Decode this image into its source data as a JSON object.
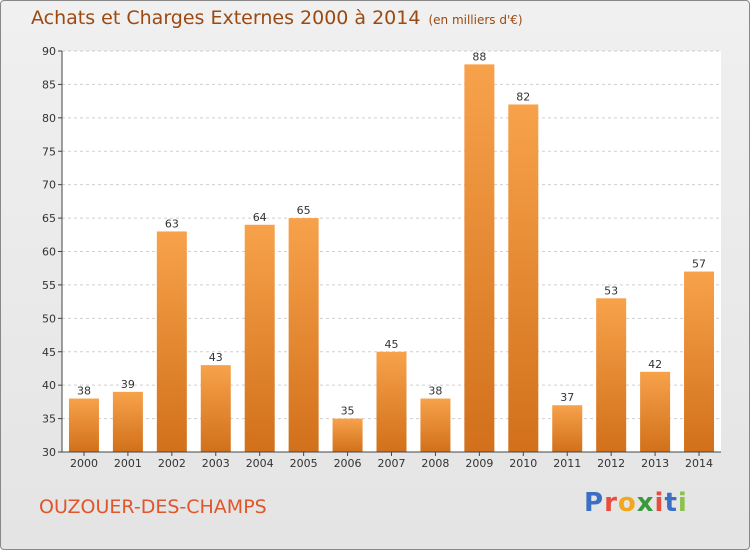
{
  "title": "Achats et Charges Externes 2000 à 2014",
  "unit": "(en milliers d'€)",
  "commune": "OUZOUER-DES-CHAMPS",
  "logo": {
    "text": "Proxiti",
    "colors": [
      "#3a6fc4",
      "#e84c3d",
      "#f2a81d",
      "#3a9a3a",
      "#e84c3d",
      "#3a6fc4",
      "#8bc34a"
    ]
  },
  "colors": {
    "bar_light": "#f7a24b",
    "bar_dark": "#d2701b",
    "grid": "#cfcfcf",
    "axis": "#444444"
  },
  "chart_data": {
    "type": "bar",
    "categories": [
      "2000",
      "2001",
      "2002",
      "2003",
      "2004",
      "2005",
      "2006",
      "2007",
      "2008",
      "2009",
      "2010",
      "2011",
      "2012",
      "2013",
      "2014"
    ],
    "values": [
      38,
      39,
      63,
      43,
      64,
      65,
      35,
      45,
      38,
      88,
      82,
      37,
      53,
      42,
      57
    ],
    "ylim": [
      30,
      90
    ],
    "yticks": [
      30,
      35,
      40,
      45,
      50,
      55,
      60,
      65,
      70,
      75,
      80,
      85,
      90
    ],
    "grid": true,
    "show_value_labels": true
  }
}
